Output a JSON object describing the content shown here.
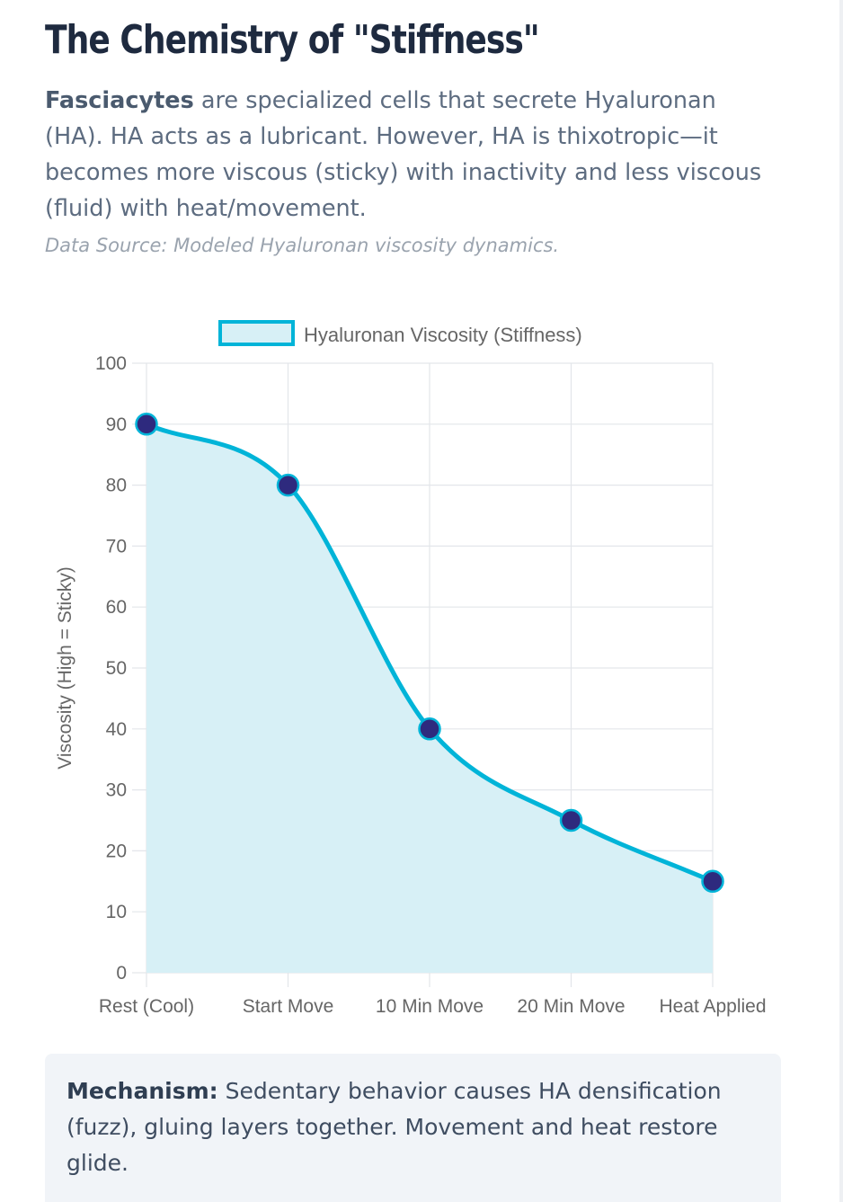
{
  "header": {
    "title": "The Chemistry of \"Stiffness\""
  },
  "intro": {
    "lead": "Fasciacytes",
    "text": " are specialized cells that secrete Hyaluronan (HA). HA acts as a lubricant. However, HA is thixotropic—it becomes more viscous (sticky) with inactivity and less viscous (fluid) with heat/movement."
  },
  "source": "Data Source: Modeled Hyaluronan viscosity dynamics.",
  "mechanism": {
    "label": "Mechanism:",
    "text": " Sedentary behavior causes HA densification (fuzz), gluing layers together. Movement and heat restore glide."
  },
  "chart_data": {
    "type": "area",
    "categories": [
      "Rest (Cool)",
      "Start Move",
      "10 Min Move",
      "20 Min Move",
      "Heat Applied"
    ],
    "series": [
      {
        "name": "Hyaluronan Viscosity (Stiffness)",
        "values": [
          90,
          80,
          40,
          25,
          15
        ]
      }
    ],
    "xlabel": "",
    "ylabel": "Viscosity (High = Sticky)",
    "ylim": [
      0,
      100
    ],
    "yticks": [
      0,
      10,
      20,
      30,
      40,
      50,
      60,
      70,
      80,
      90,
      100
    ],
    "grid": true,
    "legend": "top",
    "colors": {
      "line": "#00b4d8",
      "fill": "#d7f0f6",
      "point": "#2e2a7e",
      "grid": "#e3e6ea",
      "tick_text": "#666666"
    }
  }
}
